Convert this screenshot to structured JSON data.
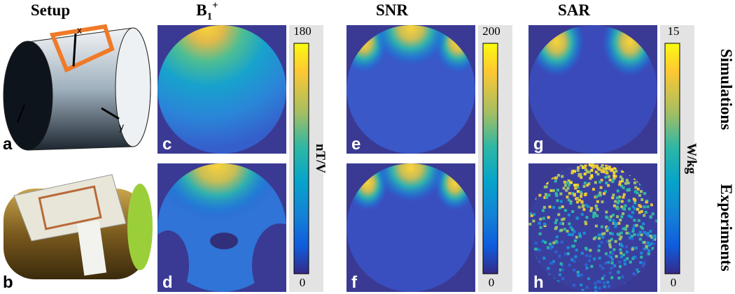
{
  "columns": {
    "setup": "Setup",
    "b1": {
      "base": "B",
      "sub": "1",
      "sup": "+"
    },
    "snr": "SNR",
    "sar": "SAR"
  },
  "rows": [
    "Simulations",
    "Experiments"
  ],
  "panels": [
    "a",
    "b",
    "c",
    "d",
    "e",
    "f",
    "g",
    "h"
  ],
  "axes": [
    "x",
    "y"
  ],
  "colorbars": [
    {
      "max": 180,
      "min": 0,
      "unit": "nT/V"
    },
    {
      "max": 200,
      "min": 0
    },
    {
      "max": 15,
      "min": 0,
      "unit": "W/kg"
    }
  ]
}
